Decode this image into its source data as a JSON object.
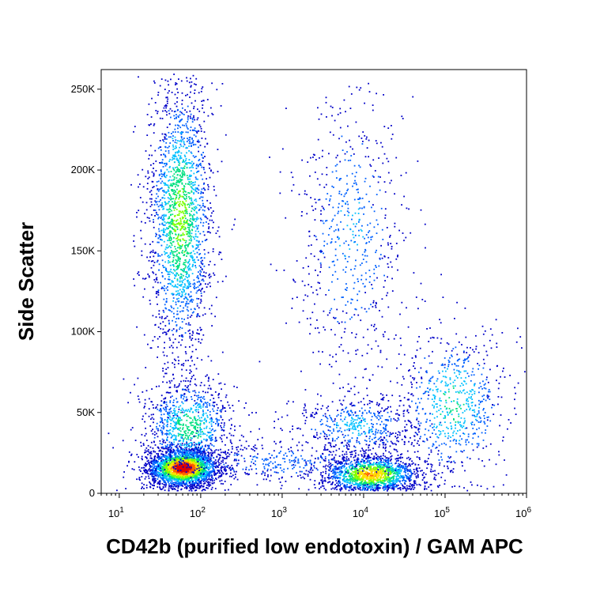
{
  "chart_data": {
    "type": "scatter",
    "subtype": "flow-cytometry-density-dot-plot",
    "title": "",
    "xlabel": "CD42b (purified low endotoxin) / GAM APC",
    "ylabel": "Side Scatter",
    "x_scale": "log",
    "xlim": [
      6,
      1000000
    ],
    "ylim": [
      0,
      262144
    ],
    "x_ticks": [
      {
        "value": 10,
        "base": "10",
        "exp": "1"
      },
      {
        "value": 100,
        "base": "10",
        "exp": "2"
      },
      {
        "value": 1000,
        "base": "10",
        "exp": "3"
      },
      {
        "value": 10000,
        "base": "10",
        "exp": "4"
      },
      {
        "value": 100000,
        "base": "10",
        "exp": "5"
      },
      {
        "value": 1000000,
        "base": "10",
        "exp": "6"
      }
    ],
    "y_ticks": [
      {
        "value": 0,
        "label": "0"
      },
      {
        "value": 50000,
        "label": "50K"
      },
      {
        "value": 100000,
        "label": "100K"
      },
      {
        "value": 150000,
        "label": "150K"
      },
      {
        "value": 200000,
        "label": "200K"
      },
      {
        "value": 250000,
        "label": "250K"
      }
    ],
    "color_scale": [
      "#0000c8",
      "#0060ff",
      "#00c0ff",
      "#00e080",
      "#80ff00",
      "#ffe000",
      "#ff6000",
      "#e00000"
    ],
    "populations": [
      {
        "name": "negative-low-ssc",
        "x_center": 60,
        "x_spread_decades": 0.22,
        "y_center": 16000,
        "y_spread": 6000,
        "count": 2600,
        "peak_density": 1.0
      },
      {
        "name": "negative-mid-ssc",
        "x_center": 70,
        "x_spread_decades": 0.28,
        "y_center": 42000,
        "y_spread": 15000,
        "count": 900,
        "peak_density": 0.45
      },
      {
        "name": "negative-high-ssc",
        "x_center": 55,
        "x_spread_decades": 0.2,
        "y_center": 170000,
        "y_spread": 45000,
        "count": 2000,
        "peak_density": 0.55
      },
      {
        "name": "positive-high-ssc",
        "x_center": 7000,
        "x_spread_decades": 0.35,
        "y_center": 160000,
        "y_spread": 50000,
        "count": 650,
        "peak_density": 0.25
      },
      {
        "name": "positive-low-ssc",
        "x_center": 12000,
        "x_spread_decades": 0.3,
        "y_center": 12000,
        "y_spread": 6000,
        "count": 1500,
        "peak_density": 0.75
      },
      {
        "name": "positive-mid-ssc",
        "x_center": 8000,
        "x_spread_decades": 0.4,
        "y_center": 42000,
        "y_spread": 10000,
        "count": 500,
        "peak_density": 0.3
      },
      {
        "name": "positive-bright-tail",
        "x_center": 120000,
        "x_spread_decades": 0.35,
        "y_center": 55000,
        "y_spread": 25000,
        "count": 700,
        "peak_density": 0.4
      },
      {
        "name": "baseline-smear",
        "x_center": 1000,
        "x_spread_decades": 0.8,
        "y_center": 20000,
        "y_spread": 7000,
        "count": 400,
        "peak_density": 0.2
      }
    ]
  }
}
